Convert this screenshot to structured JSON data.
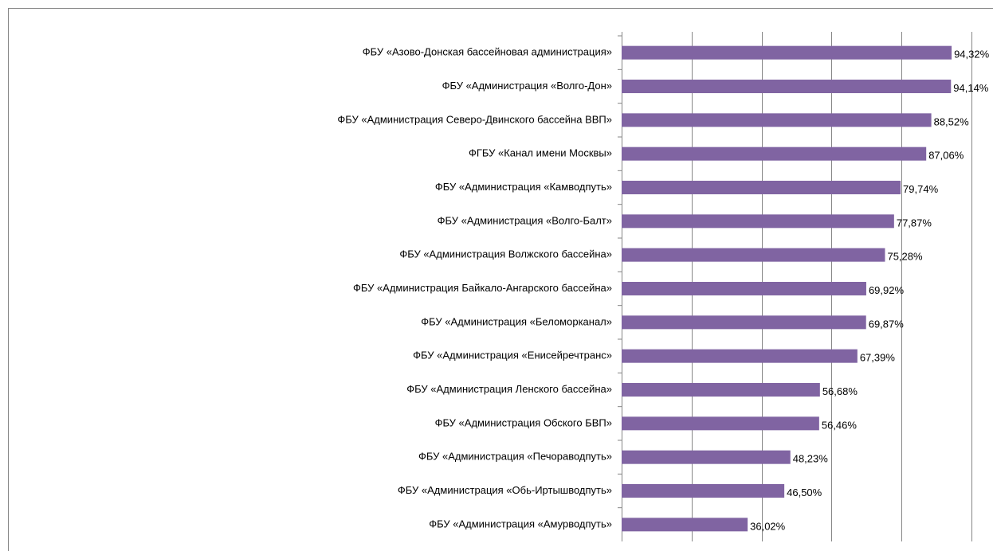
{
  "chart_data": {
    "type": "bar",
    "orientation": "horizontal",
    "color": "#8064a2",
    "categories": [
      "ФБУ «Азово-Донская бассейновая администрация»",
      "ФБУ «Администрация «Волго-Дон»",
      "ФБУ «Администрация Северо-Двинского бассейна ВВП»",
      "ФГБУ «Канал имени Москвы»",
      "ФБУ «Администрация «Камводпуть»",
      "ФБУ «Администрация «Волго-Балт»",
      "ФБУ «Администрация Волжского бассейна»",
      "ФБУ «Администрация Байкало-Ангарского бассейна»",
      "ФБУ «Администрация «Беломорканал»",
      "ФБУ «Администрация «Енисейречтранс»",
      "ФБУ «Администрация Ленского бассейна»",
      "ФБУ «Администрация Обского БВП»",
      "ФБУ «Администрация «Печораводпуть»",
      "ФБУ «Администрация «Обь-Иртышводпуть»",
      "ФБУ «Администрация «Амурводпуть»"
    ],
    "values": [
      94.32,
      94.14,
      88.52,
      87.06,
      79.74,
      77.87,
      75.28,
      69.92,
      69.87,
      67.39,
      56.68,
      56.46,
      48.23,
      46.5,
      36.02
    ],
    "value_labels": [
      "94,32%",
      "94,14%",
      "88,52%",
      "87,06%",
      "79,74%",
      "77,87%",
      "75,28%",
      "69,92%",
      "69,87%",
      "67,39%",
      "56,68%",
      "56,46%",
      "48,23%",
      "46,50%",
      "36,02%"
    ],
    "xlim": [
      0,
      100
    ],
    "xticks": [
      0,
      20,
      40,
      60,
      80,
      100
    ],
    "grid": true
  }
}
